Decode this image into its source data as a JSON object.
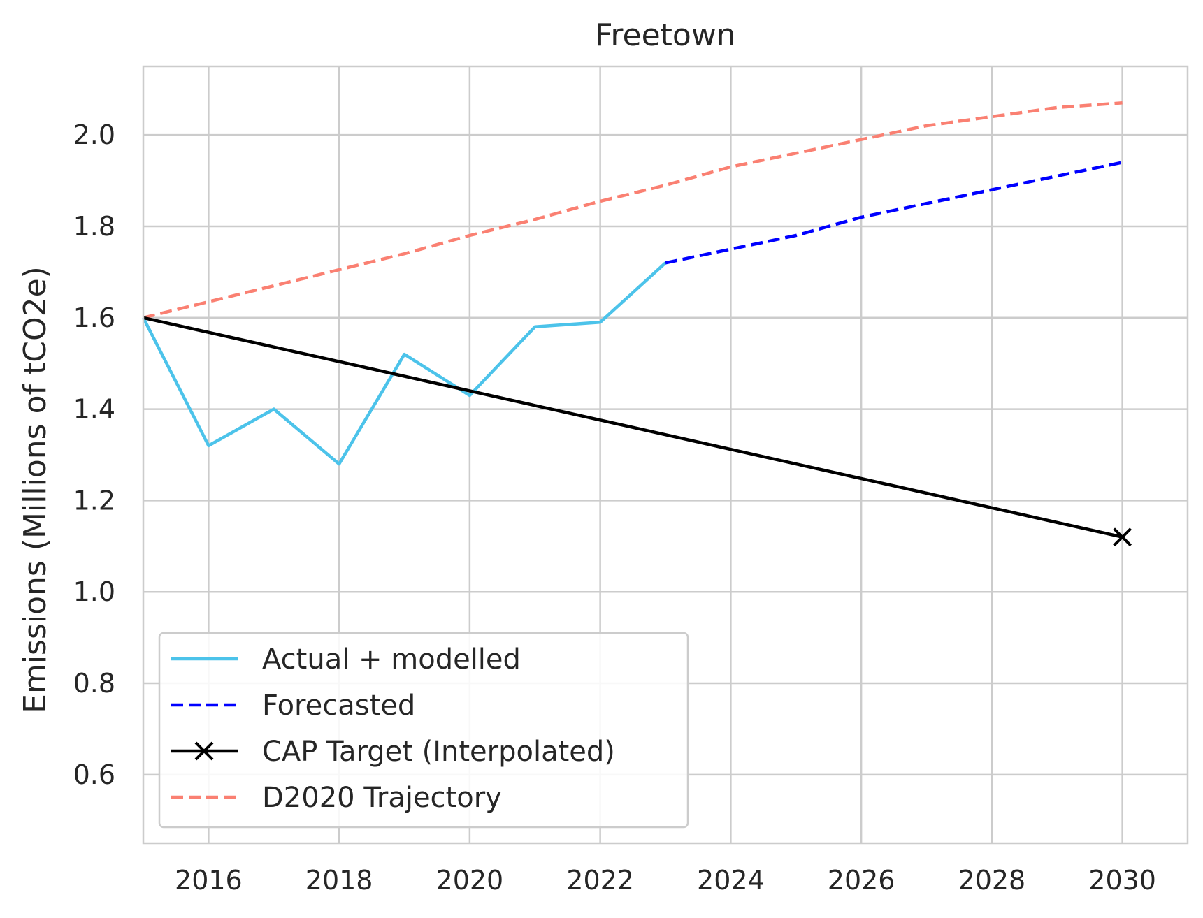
{
  "chart_data": {
    "type": "line",
    "title": "Freetown",
    "xlabel": "",
    "ylabel": "Emissions (Millions of tCO2e)",
    "xlim": [
      2015,
      2031
    ],
    "ylim": [
      0.45,
      2.15
    ],
    "xticks": [
      2016,
      2018,
      2020,
      2022,
      2024,
      2026,
      2028,
      2030
    ],
    "yticks": [
      0.6,
      0.8,
      1.0,
      1.2,
      1.4,
      1.6,
      1.8,
      2.0
    ],
    "xtick_labels": [
      "2016",
      "2018",
      "2020",
      "2022",
      "2024",
      "2026",
      "2028",
      "2030"
    ],
    "ytick_labels": [
      "0.6",
      "0.8",
      "1.0",
      "1.2",
      "1.4",
      "1.6",
      "1.8",
      "2.0"
    ],
    "grid": true,
    "legend_position": "lower-left",
    "series": [
      {
        "name": "Actual + modelled",
        "color": "#4cc3ea",
        "style": "solid",
        "x": [
          2015,
          2016,
          2017,
          2018,
          2019,
          2020,
          2021,
          2022,
          2023
        ],
        "y": [
          1.6,
          1.32,
          1.4,
          1.28,
          1.52,
          1.43,
          1.58,
          1.59,
          1.72
        ]
      },
      {
        "name": "Forecasted",
        "color": "#0000ff",
        "style": "dashed",
        "x": [
          2023,
          2024,
          2025,
          2026,
          2027,
          2028,
          2029,
          2030
        ],
        "y": [
          1.72,
          1.75,
          1.78,
          1.82,
          1.85,
          1.88,
          1.91,
          1.94
        ]
      },
      {
        "name": "CAP Target (Interpolated)",
        "color": "#000000",
        "style": "solid",
        "marker_at_end": "x",
        "x": [
          2015,
          2030
        ],
        "y": [
          1.6,
          1.12
        ]
      },
      {
        "name": "D2020 Trajectory",
        "color": "#fa8072",
        "style": "dashed",
        "x": [
          2015,
          2016,
          2017,
          2018,
          2019,
          2020,
          2021,
          2022,
          2023,
          2024,
          2025,
          2026,
          2027,
          2028,
          2029,
          2030
        ],
        "y": [
          1.6,
          1.635,
          1.67,
          1.705,
          1.74,
          1.78,
          1.815,
          1.855,
          1.89,
          1.93,
          1.96,
          1.99,
          2.02,
          2.04,
          2.06,
          2.07
        ]
      }
    ]
  }
}
